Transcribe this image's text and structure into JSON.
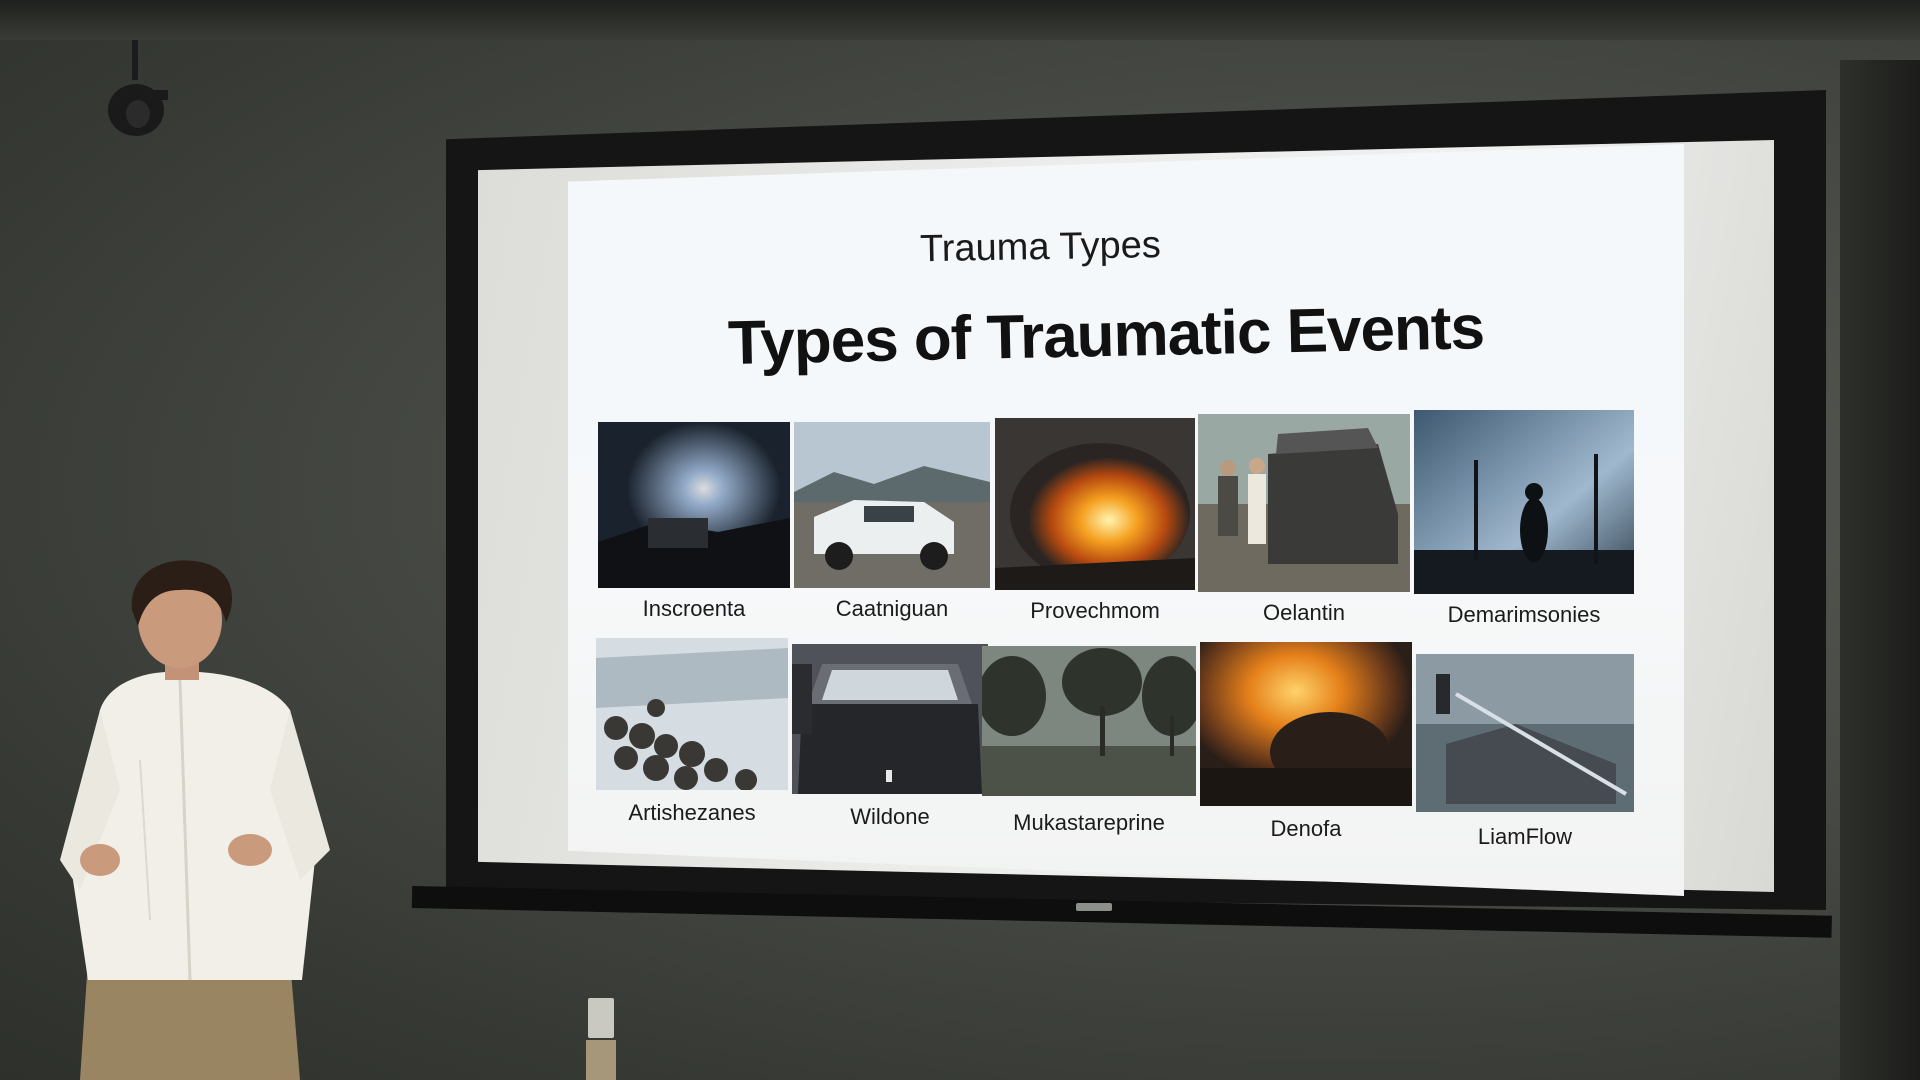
{
  "slide": {
    "subtitle": "Trauma Types",
    "title": "Types of Traumatic Events",
    "row1": [
      {
        "label": "Inscroenta",
        "scene": "night-fire"
      },
      {
        "label": "Caatniguan",
        "scene": "crashed-car"
      },
      {
        "label": "Provechmom",
        "scene": "fire-blaze"
      },
      {
        "label": "Oelantin",
        "scene": "wrecked-vehicle"
      },
      {
        "label": "Demarimsonies",
        "scene": "dark-silhouette"
      }
    ],
    "row2": [
      {
        "label": "Artishezanes",
        "scene": "crowd-snow"
      },
      {
        "label": "Wildone",
        "scene": "car-front"
      },
      {
        "label": "Mukastareprine",
        "scene": "stormy-trees"
      },
      {
        "label": "Denofa",
        "scene": "fire-smoke"
      },
      {
        "label": "LiamFlow",
        "scene": "flood-water"
      }
    ]
  },
  "colors": {
    "wall": "#474a44",
    "screen_frame": "#141514",
    "slide_bg": "#f4f8fb",
    "fire": "#f28a1c",
    "shirt": "#f1efe8",
    "trousers": "#9a8563"
  }
}
